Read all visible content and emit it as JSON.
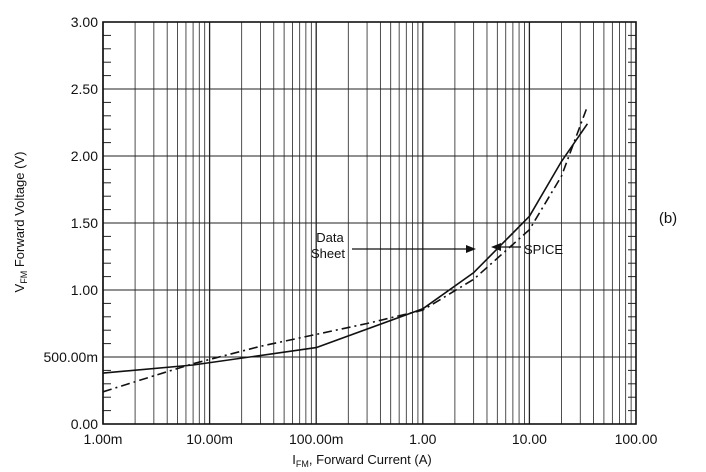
{
  "chart_data": {
    "type": "line",
    "x_scale": "log",
    "xlim": [
      0.001,
      100
    ],
    "ylim": [
      0,
      3
    ],
    "grid": true,
    "xlabel": {
      "main": "I",
      "sub": "FM",
      "rest": ", Forward Current (A)"
    },
    "ylabel": {
      "main": "V",
      "sub": "FM",
      "rest": " Forward Voltage (V)"
    },
    "x_ticks": [
      {
        "value": 0.001,
        "label": "1.00m"
      },
      {
        "value": 0.01,
        "label": "10.00m"
      },
      {
        "value": 0.1,
        "label": "100.00m"
      },
      {
        "value": 1,
        "label": "1.00"
      },
      {
        "value": 10,
        "label": "10.00"
      },
      {
        "value": 100,
        "label": "100.00"
      }
    ],
    "y_ticks": [
      {
        "value": 0,
        "label": "0.00"
      },
      {
        "value": 0.5,
        "label": "500.00m"
      },
      {
        "value": 1.0,
        "label": "1.00"
      },
      {
        "value": 1.5,
        "label": "1.50"
      },
      {
        "value": 2.0,
        "label": "2.00"
      },
      {
        "value": 2.5,
        "label": "2.50"
      },
      {
        "value": 3.0,
        "label": "3.00"
      }
    ],
    "series": [
      {
        "name": "Data Sheet",
        "style": "solid",
        "points": [
          [
            0.001,
            0.38
          ],
          [
            0.007,
            0.44
          ],
          [
            0.1,
            0.57
          ],
          [
            1.0,
            0.86
          ],
          [
            3.0,
            1.13
          ],
          [
            10.0,
            1.55
          ],
          [
            20.0,
            1.96
          ],
          [
            35.0,
            2.24
          ]
        ]
      },
      {
        "name": "SPICE",
        "style": "dashdot",
        "points": [
          [
            0.001,
            0.24
          ],
          [
            0.003,
            0.36
          ],
          [
            0.007,
            0.45
          ],
          [
            0.03,
            0.58
          ],
          [
            0.3,
            0.75
          ],
          [
            1.0,
            0.85
          ],
          [
            3.0,
            1.08
          ],
          [
            10.0,
            1.45
          ],
          [
            20.0,
            1.85
          ],
          [
            35.0,
            2.37
          ]
        ]
      }
    ],
    "annotations": {
      "data_sheet": {
        "line1": "Data",
        "line2": "Sheet"
      },
      "spice": "SPICE",
      "panel": "(b)"
    }
  }
}
